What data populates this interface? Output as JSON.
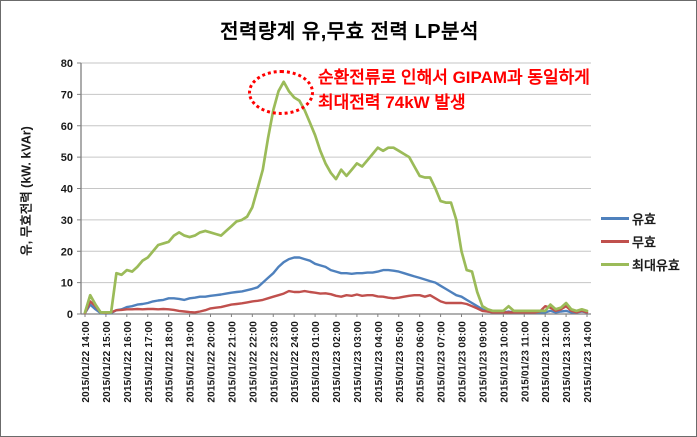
{
  "chart_data": {
    "type": "line",
    "title": "전력량계 유,무효 전력 LP분석",
    "ylabel": "유, 무효전력 (kW. kVAr)",
    "ylim": [
      0,
      80
    ],
    "yticks": [
      0,
      10,
      20,
      30,
      40,
      50,
      60,
      70,
      80
    ],
    "grid": "horizontal",
    "legend_position": "right",
    "x_interval_minutes": 15,
    "x_tick_labels": [
      "2015/01/22 14:00",
      "2015/01/22 15:00",
      "2015/01/22 16:00",
      "2015/01/22 17:00",
      "2015/01/22 18:00",
      "2015/01/22 19:00",
      "2015/01/22 20:00",
      "2015/01/22 21:00",
      "2015/01/22 22:00",
      "2015/01/22 23:00",
      "2015/01/22 24:00",
      "2015/01/23 01:00",
      "2015/01/23 02:00",
      "2015/01/23 03:00",
      "2015/01/23 04:00",
      "2015/01/23 05:00",
      "2015/01/23 06:00",
      "2015/01/23 07:00",
      "2015/01/23 08:00",
      "2015/01/23 09:00",
      "2015/01/23 10:00",
      "2015/01/23 11:00",
      "2015/01/23 12:00",
      "2015/01/23 13:00",
      "2015/01/23 14:00"
    ],
    "series": [
      {
        "name": "유효",
        "color": "#4F81BD",
        "values": [
          0.3,
          3,
          1.5,
          0.3,
          0.2,
          0.3,
          1.2,
          1.5,
          2.2,
          2.5,
          3,
          3.2,
          3.5,
          4,
          4.3,
          4.5,
          5,
          5,
          4.8,
          4.5,
          5,
          5.2,
          5.5,
          5.5,
          5.8,
          6,
          6.2,
          6.5,
          6.8,
          7,
          7.2,
          7.6,
          8,
          8.5,
          10,
          11.5,
          13,
          15,
          16.5,
          17.5,
          18,
          18,
          17.5,
          17,
          16,
          15.5,
          15,
          14,
          13.5,
          13,
          13,
          12.8,
          13,
          13,
          13.2,
          13.2,
          13.5,
          14,
          14,
          13.8,
          13.5,
          13,
          12.5,
          12,
          11.5,
          11,
          10.5,
          10,
          9,
          8,
          7,
          6,
          5.5,
          4.5,
          3.5,
          2.5,
          1.5,
          0.8,
          0.5,
          0.5,
          0.5,
          0.8,
          0.5,
          0.5,
          0.5,
          0.5,
          0.5,
          0.5,
          0.5,
          1,
          0.5,
          0.8,
          1,
          0.5,
          0.5,
          0.8,
          0.5
        ]
      },
      {
        "name": "무효",
        "color": "#C0504D",
        "values": [
          0.3,
          4,
          2.5,
          0.5,
          0.3,
          0.5,
          1.2,
          1.3,
          1.5,
          1.5,
          1.6,
          1.5,
          1.6,
          1.6,
          1.5,
          1.6,
          1.5,
          1.3,
          1,
          0.8,
          0.6,
          0.5,
          0.8,
          1.2,
          1.8,
          2,
          2.2,
          2.6,
          3,
          3.2,
          3.4,
          3.7,
          4,
          4.2,
          4.5,
          5,
          5.5,
          6,
          6.5,
          7.3,
          7,
          7,
          7.3,
          7,
          6.8,
          6.5,
          6.6,
          6.3,
          5.8,
          5.5,
          6,
          5.8,
          6.2,
          5.8,
          6,
          6,
          5.6,
          5.5,
          5.2,
          5,
          5.2,
          5.5,
          5.8,
          6,
          6,
          5.5,
          6,
          5,
          4,
          3.5,
          3.5,
          3.5,
          3.5,
          3.2,
          2.5,
          1.8,
          1,
          0.8,
          0.5,
          0.5,
          0.5,
          0.5,
          0.5,
          0.5,
          0.5,
          0.5,
          0.5,
          0.8,
          2.5,
          2,
          1,
          1.5,
          2.5,
          1,
          0.5,
          1,
          0.5
        ]
      },
      {
        "name": "최대유효",
        "color": "#9BBB59",
        "values": [
          0.5,
          6,
          3,
          0.5,
          0.5,
          0.5,
          13,
          12.5,
          14,
          13.5,
          15,
          17,
          18,
          20,
          22,
          22.5,
          23,
          25,
          26,
          25,
          24.5,
          25,
          26,
          26.5,
          26,
          25.5,
          25,
          26.5,
          28,
          29.5,
          30,
          31,
          34,
          40,
          46,
          56,
          65,
          71,
          74,
          71,
          69,
          68,
          65,
          61,
          57,
          52,
          48,
          45,
          43,
          46,
          44,
          46,
          48,
          47,
          49,
          51,
          53,
          52,
          53,
          53,
          52,
          51,
          50,
          47,
          44,
          43.5,
          43.5,
          40,
          36,
          35.5,
          35.5,
          30,
          20,
          14,
          13.5,
          7,
          2.5,
          1.5,
          1,
          1,
          1,
          2.5,
          1,
          1,
          1,
          1,
          1,
          1,
          1,
          3,
          1.5,
          2,
          3.5,
          1.5,
          1,
          1.5,
          1
        ]
      }
    ],
    "annotation": {
      "line1": "순환전류로 인해서 GIPAM과 동일하게",
      "line2": "최대전력 74kW 발생",
      "color": "#FF0000",
      "highlight": "dotted ellipse around peak"
    },
    "axis_color": "#808080",
    "grid_color": "#C6C6C6"
  }
}
